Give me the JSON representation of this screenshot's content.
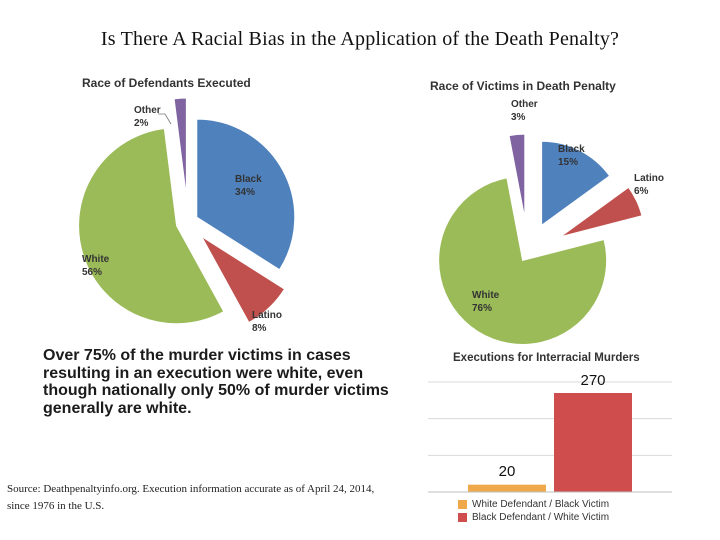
{
  "page": {
    "title": "Is There A Racial Bias in the Application of the Death Penalty?",
    "headline": "Over 75% of the murder victims in cases resulting in an execution were white, even though nationally only 50% of murder victims generally are white.",
    "source": "Source: Deathpenaltyinfo.org. Execution information accurate as of April 24, 2014, since 1976 in the U.S."
  },
  "chart_data": [
    {
      "type": "pie",
      "title": "Race of Defendants Executed",
      "slices": [
        {
          "label": "Black",
          "value": 34,
          "value_label": "34%",
          "color": "#4f81bd"
        },
        {
          "label": "Latino",
          "value": 8,
          "value_label": "8%",
          "color": "#c0504d"
        },
        {
          "label": "White",
          "value": 56,
          "value_label": "56%",
          "color": "#9bbb59"
        },
        {
          "label": "Other",
          "value": 2,
          "value_label": "2%",
          "color": "#8064a2"
        }
      ]
    },
    {
      "type": "pie",
      "title": "Race of Victims in Death Penalty",
      "slices": [
        {
          "label": "Black",
          "value": 15,
          "value_label": "15%",
          "color": "#4f81bd"
        },
        {
          "label": "Latino",
          "value": 6,
          "value_label": "6%",
          "color": "#c0504d"
        },
        {
          "label": "White",
          "value": 76,
          "value_label": "76%",
          "color": "#9bbb59"
        },
        {
          "label": "Other",
          "value": 3,
          "value_label": "3%",
          "color": "#8064a2"
        }
      ]
    },
    {
      "type": "bar",
      "title": "Executions for Interracial Murders",
      "categories": [
        "White Defendant / Black Victim",
        "Black Defendant / White Victim"
      ],
      "values": [
        20,
        270
      ],
      "colors": [
        "#f0a94a",
        "#cf4d4d"
      ],
      "ylim": [
        0,
        300
      ],
      "grid": true,
      "legend": "bottom"
    }
  ]
}
